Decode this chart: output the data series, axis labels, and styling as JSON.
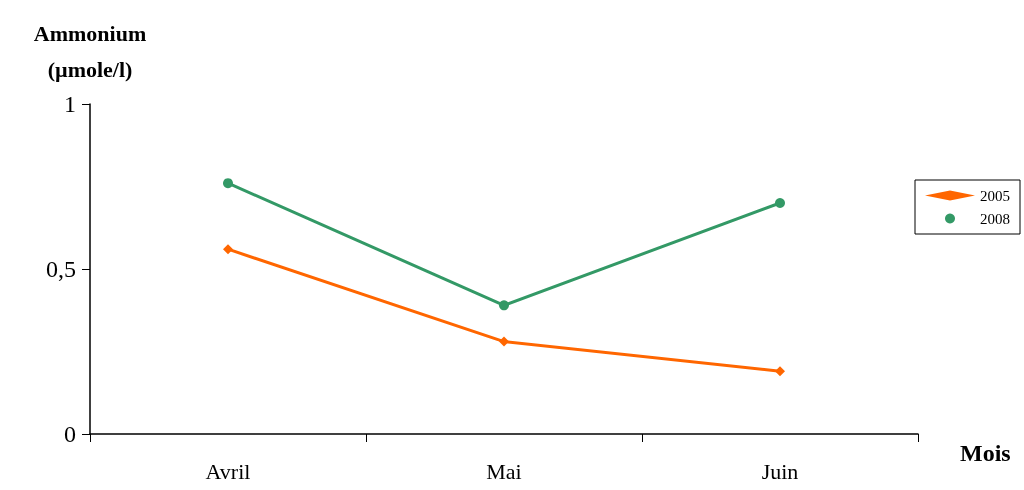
{
  "chart_data": {
    "type": "line",
    "xlabel": "Mois",
    "ylabel": "Ammonium\n(µmole/l)",
    "categories": [
      "Avril",
      "Mai",
      "Juin"
    ],
    "series": [
      {
        "name": "2005",
        "color": "#ff6600",
        "marker": "diamond",
        "values": [
          0.56,
          0.28,
          0.19
        ]
      },
      {
        "name": "2008",
        "color": "#339966",
        "marker": "circle",
        "values": [
          0.76,
          0.39,
          0.7
        ]
      }
    ],
    "ylim": [
      0,
      1
    ],
    "yticks": [
      0,
      {
        "value": 0.5,
        "label": "0,5"
      },
      1
    ],
    "grid": false,
    "legend": "right",
    "line_style": "solid"
  }
}
